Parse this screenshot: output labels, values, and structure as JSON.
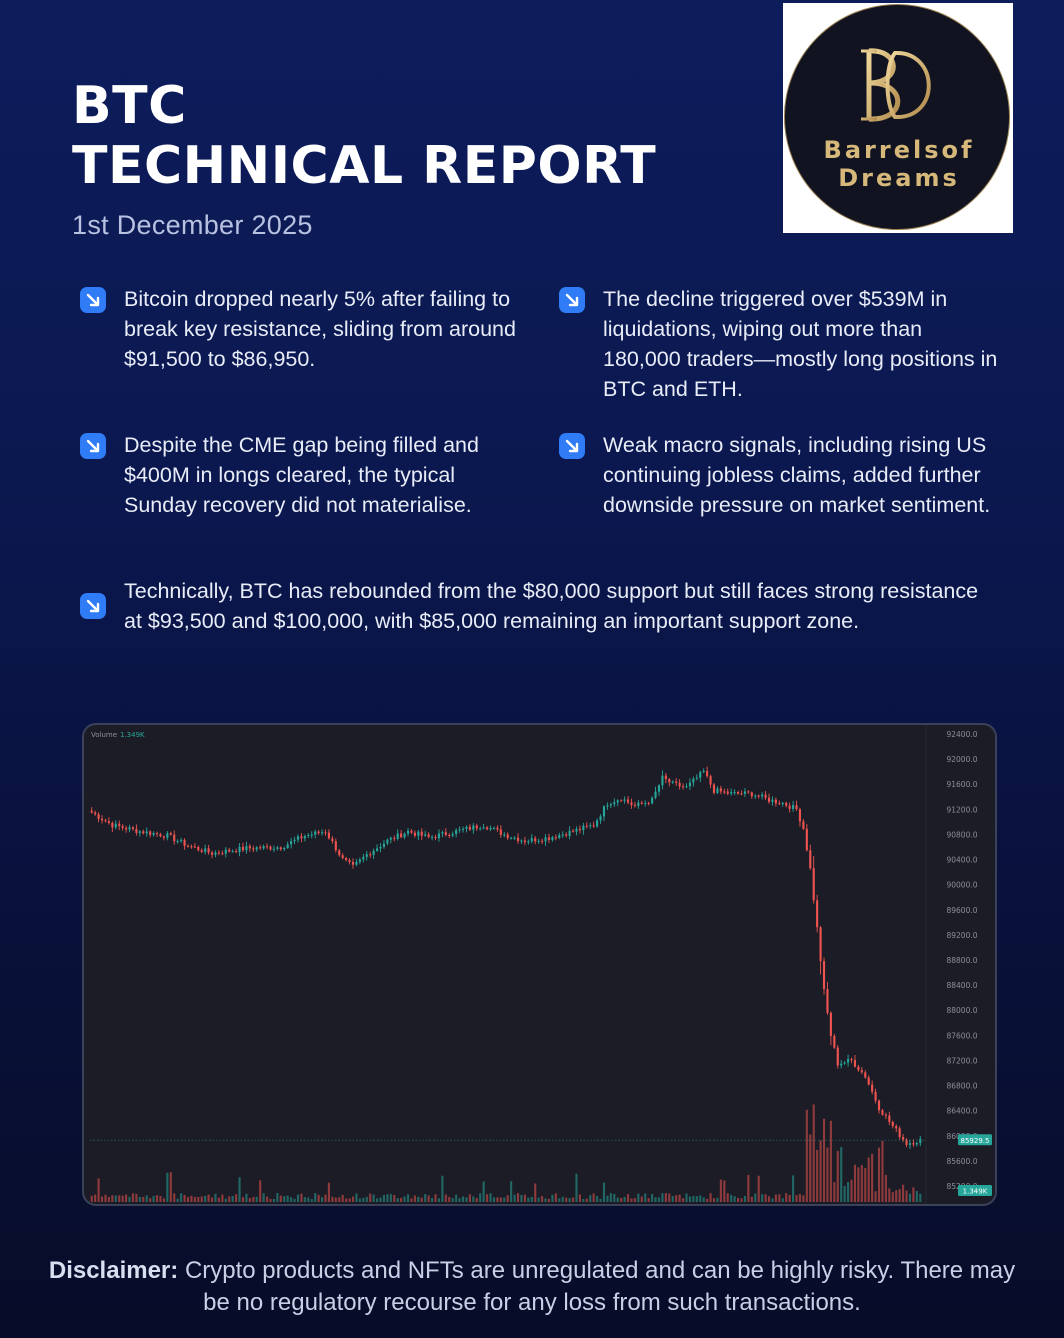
{
  "header": {
    "title_line1": "BTC",
    "title_line2": "TECHNICAL REPORT",
    "date": "1st December 2025"
  },
  "logo": {
    "line1": "Barrelsof",
    "line2": "Dreams",
    "monogram": "BD"
  },
  "bullets": [
    {
      "icon": "arrow-down-right-icon",
      "text": "Bitcoin dropped nearly 5% after failing to break key resistance, sliding from around $91,500 to $86,950."
    },
    {
      "icon": "arrow-down-right-icon",
      "text": "The decline triggered over $539M in liquidations, wiping out more than 180,000 traders—mostly long positions in BTC and ETH."
    },
    {
      "icon": "arrow-down-right-icon",
      "text": "Despite the CME gap being filled and $400M in longs cleared, the typical Sunday recovery did not materialise."
    },
    {
      "icon": "arrow-down-right-icon",
      "text": "Weak macro signals, including rising US continuing jobless claims, added further downside pressure on market sentiment."
    },
    {
      "icon": "arrow-down-right-icon",
      "text": "Technically, BTC has rebounded from the $80,000 support but still faces strong resistance at $93,500 and $100,000, with $85,000 remaining an important support zone."
    }
  ],
  "colors": {
    "accent_blue": "#2f7cf6",
    "up_candle": "#26a69a",
    "down_candle": "#ef5350",
    "logo_gold": "#d6b87a",
    "chart_bg": "#1b1c25"
  },
  "chart_data": {
    "type": "candlestick",
    "volume_label": "Volume",
    "volume_value": "1.349K",
    "last_price_label": "85929.5",
    "last_volume_label": "1.349K",
    "y_ticks": [
      "92400.0",
      "92000.0",
      "91600.0",
      "91200.0",
      "90800.0",
      "90400.0",
      "90000.0",
      "89600.0",
      "89200.0",
      "88800.0",
      "88400.0",
      "88000.0",
      "87600.0",
      "87200.0",
      "86800.0",
      "86400.0",
      "86000.0",
      "85600.0",
      "85200.0"
    ],
    "ylim": [
      85200,
      92400
    ],
    "grid": false,
    "anchors": [
      [
        0,
        91150
      ],
      [
        6,
        90950
      ],
      [
        14,
        90850
      ],
      [
        22,
        90780
      ],
      [
        28,
        90620
      ],
      [
        35,
        90500
      ],
      [
        45,
        90580
      ],
      [
        55,
        90600
      ],
      [
        62,
        90780
      ],
      [
        68,
        90850
      ],
      [
        73,
        90400
      ],
      [
        76,
        90280
      ],
      [
        80,
        90480
      ],
      [
        86,
        90700
      ],
      [
        92,
        90850
      ],
      [
        98,
        90750
      ],
      [
        106,
        90850
      ],
      [
        114,
        90950
      ],
      [
        120,
        90800
      ],
      [
        126,
        90700
      ],
      [
        133,
        90750
      ],
      [
        140,
        90850
      ],
      [
        146,
        90950
      ],
      [
        150,
        91300
      ],
      [
        154,
        91380
      ],
      [
        158,
        91250
      ],
      [
        163,
        91350
      ],
      [
        166,
        91700
      ],
      [
        169,
        91600
      ],
      [
        173,
        91550
      ],
      [
        178,
        91800
      ],
      [
        181,
        91500
      ],
      [
        186,
        91450
      ],
      [
        192,
        91450
      ],
      [
        197,
        91350
      ],
      [
        201,
        91300
      ],
      [
        205,
        91200
      ],
      [
        207,
        90900
      ],
      [
        209,
        90250
      ],
      [
        211,
        89300
      ],
      [
        213,
        88300
      ],
      [
        215,
        87600
      ],
      [
        217,
        87150
      ],
      [
        221,
        87200
      ],
      [
        225,
        86950
      ],
      [
        229,
        86450
      ],
      [
        233,
        86150
      ],
      [
        237,
        85880
      ],
      [
        241,
        85930
      ]
    ]
  }
}
